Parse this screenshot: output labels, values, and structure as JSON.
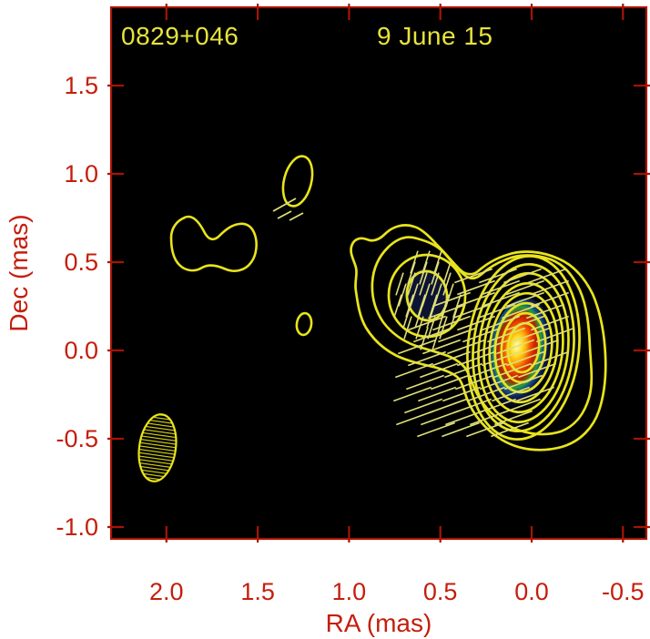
{
  "figure": {
    "source_name": "0829+046",
    "epoch": "9 June 15"
  },
  "axes": {
    "x": {
      "label": "RA (mas)",
      "ticks": [
        "2.0",
        "1.5",
        "1.0",
        "0.5",
        "0.0",
        "-0.5"
      ],
      "tick_values": [
        2.0,
        1.5,
        1.0,
        0.5,
        0.0,
        -0.5
      ],
      "range_mas": [
        2.3,
        -0.65
      ]
    },
    "y": {
      "label": "Dec (mas)",
      "ticks": [
        "1.5",
        "1.0",
        "0.5",
        "0.0",
        "-0.5",
        "-1.0"
      ],
      "tick_values": [
        1.5,
        1.0,
        0.5,
        0.0,
        -0.5,
        -1.0
      ],
      "range_mas": [
        -1.06,
        1.94
      ]
    }
  },
  "colors": {
    "plot_background": "#000000",
    "margin_background": "#ffffff",
    "frame_red": "#a81404",
    "label_red": "#c41e0c",
    "contour_yellow": "#e8e41c",
    "annotation_yellow": "#e7e33b",
    "polarization_tick_yellow": "#dede7a",
    "core_peak": "#fff7c8",
    "core_hot": "#ff9e05",
    "core_red": "#d42a00",
    "core_green": "#21a03e",
    "core_blue": "#101c55"
  },
  "chart_data": {
    "type": "contour",
    "title": "0829+046",
    "subtitle": "9 June 15",
    "xlabel": "RA (mas)",
    "ylabel": "Dec (mas)",
    "xlim": [
      2.3,
      -0.65
    ],
    "ylim": [
      -1.06,
      1.94
    ],
    "grid": false,
    "x_ticks": [
      2.0,
      1.5,
      1.0,
      0.5,
      0.0,
      -0.5
    ],
    "y_ticks": [
      1.5,
      1.0,
      0.5,
      0.0,
      -0.5,
      -1.0
    ],
    "contour_levels_visible": 10,
    "polarization_ticks": true,
    "components": [
      {
        "name": "core",
        "ra_mas": 0.1,
        "dec_mas": 0.0,
        "appearance": "brightest peak, color-filled yellow-orange-red-green-blue, ~8 closed contour rings, shallow diagonal polarization ticks"
      },
      {
        "name": "inner-jet-knot",
        "ra_mas": 0.58,
        "dec_mas": 0.31,
        "appearance": "two closed contour rings with steep polarization hatching, joined to core by two outer contours"
      },
      {
        "name": "jet-blob",
        "ra_mas": 1.25,
        "dec_mas": 0.15,
        "appearance": "small single-contour blob"
      },
      {
        "name": "outer-knot",
        "ra_mas": 1.28,
        "dec_mas": 0.94,
        "appearance": "small open ellipse contour with three polarization ticks below"
      },
      {
        "name": "diffuse-emission",
        "ra_mas": 1.76,
        "dec_mas": 0.61,
        "appearance": "irregular peanut-shaped single contour"
      },
      {
        "name": "restoring-beam",
        "ra_mas": 2.05,
        "dec_mas": -0.55,
        "appearance": "horizontally hatched ellipse in lower-left corner"
      }
    ]
  }
}
